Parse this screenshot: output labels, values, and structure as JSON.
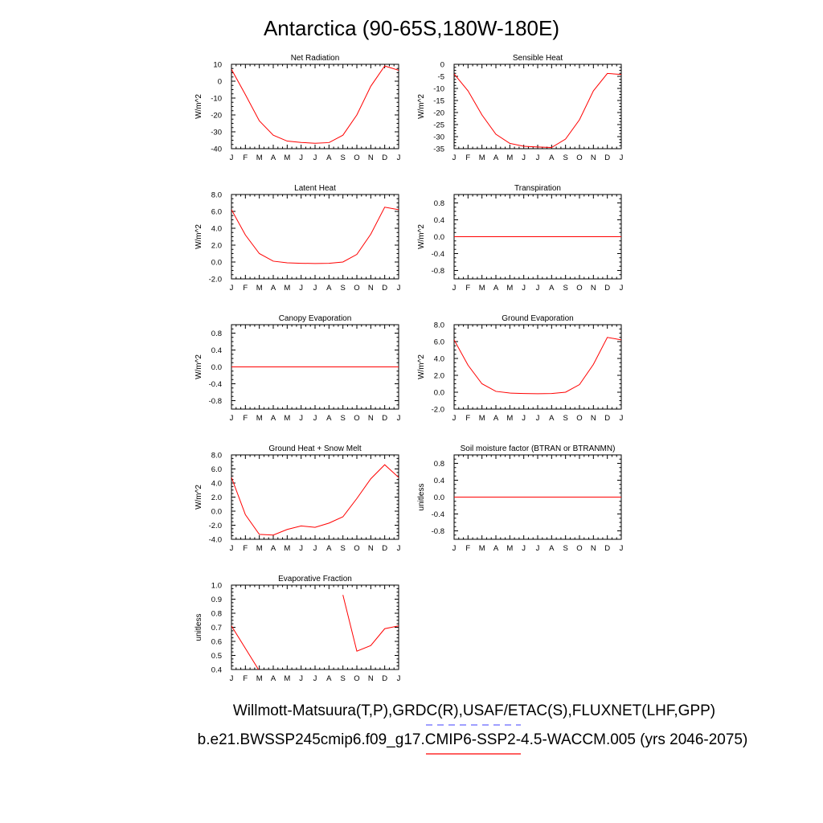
{
  "figure": {
    "title": "Antarctica (90-65S,180W-180E)",
    "legend": [
      {
        "text": "Willmott-Matsuura(T,P),GRDC(R),USAF/ETAC(S),FLUXNET(LHF,GPP)",
        "color": "#6666ff",
        "style": "dashed"
      },
      {
        "text": "b.e21.BWSSP245cmip6.f09_g17.CMIP6-SSP2-4.5-WACCM.005 (yrs 2046-2075)",
        "color": "#ff0000",
        "style": "solid"
      }
    ]
  },
  "chart_data": [
    {
      "type": "line",
      "title": "Net Radiation",
      "ylabel": "W/m^2",
      "x": [
        "J",
        "F",
        "M",
        "A",
        "M",
        "J",
        "J",
        "A",
        "S",
        "O",
        "N",
        "D",
        "J"
      ],
      "ylim": [
        -40,
        10
      ],
      "yticks": [
        10,
        0,
        -10,
        -20,
        -30,
        -40
      ],
      "yticklabels": [
        "10",
        "0",
        "-10",
        "-20",
        "-30",
        "-40"
      ],
      "series": [
        {
          "name": "model",
          "color": "#ff0000",
          "values": [
            7,
            -8,
            -23.5,
            -32,
            -35.5,
            -36.3,
            -36.8,
            -36.4,
            -32,
            -20,
            -3,
            9,
            6.5
          ]
        }
      ]
    },
    {
      "type": "line",
      "title": "Sensible Heat",
      "ylabel": "W/m^2",
      "x": [
        "J",
        "F",
        "M",
        "A",
        "M",
        "J",
        "J",
        "A",
        "S",
        "O",
        "N",
        "D",
        "J"
      ],
      "ylim": [
        -35,
        0
      ],
      "yticks": [
        0,
        -5,
        -10,
        -15,
        -20,
        -25,
        -30,
        -35
      ],
      "yticklabels": [
        "0",
        "-5",
        "-10",
        "-15",
        "-20",
        "-25",
        "-30",
        "-35"
      ],
      "series": [
        {
          "name": "model",
          "color": "#ff0000",
          "values": [
            -4,
            -11,
            -21,
            -29,
            -32.8,
            -34,
            -34.3,
            -34.5,
            -31,
            -23,
            -11,
            -3.8,
            -4.2
          ]
        }
      ]
    },
    {
      "type": "line",
      "title": "Latent Heat",
      "ylabel": "W/m^2",
      "x": [
        "J",
        "F",
        "M",
        "A",
        "M",
        "J",
        "J",
        "A",
        "S",
        "O",
        "N",
        "D",
        "J"
      ],
      "ylim": [
        -2,
        8
      ],
      "yticks": [
        8,
        6,
        4,
        2,
        0,
        -2
      ],
      "yticklabels": [
        "8.0",
        "6.0",
        "4.0",
        "2.0",
        "0.0",
        "-2.0"
      ],
      "series": [
        {
          "name": "model",
          "color": "#ff0000",
          "values": [
            6.2,
            3.2,
            1,
            0.1,
            -0.1,
            -0.15,
            -0.18,
            -0.15,
            0,
            0.9,
            3.3,
            6.5,
            6.2
          ]
        }
      ]
    },
    {
      "type": "line",
      "title": "Transpiration",
      "ylabel": "W/m^2",
      "x": [
        "J",
        "F",
        "M",
        "A",
        "M",
        "J",
        "J",
        "A",
        "S",
        "O",
        "N",
        "D",
        "J"
      ],
      "ylim": [
        -1,
        1
      ],
      "yticks": [
        0.8,
        0.4,
        0,
        -0.4,
        -0.8
      ],
      "yticklabels": [
        "0.8",
        "0.4",
        "0.0",
        "-0.4",
        "-0.8"
      ],
      "series": [
        {
          "name": "model",
          "color": "#ff0000",
          "values": [
            0,
            0,
            0,
            0,
            0,
            0,
            0,
            0,
            0,
            0,
            0,
            0,
            0
          ]
        }
      ]
    },
    {
      "type": "line",
      "title": "Canopy Evaporation",
      "ylabel": "W/m^2",
      "x": [
        "J",
        "F",
        "M",
        "A",
        "M",
        "J",
        "J",
        "A",
        "S",
        "O",
        "N",
        "D",
        "J"
      ],
      "ylim": [
        -1,
        1
      ],
      "yticks": [
        0.8,
        0.4,
        0,
        -0.4,
        -0.8
      ],
      "yticklabels": [
        "0.8",
        "0.4",
        "0.0",
        "-0.4",
        "-0.8"
      ],
      "series": [
        {
          "name": "model",
          "color": "#ff0000",
          "values": [
            0,
            0,
            0,
            0,
            0,
            0,
            0,
            0,
            0,
            0,
            0,
            0,
            0
          ]
        }
      ]
    },
    {
      "type": "line",
      "title": "Ground Evaporation",
      "ylabel": "W/m^2",
      "x": [
        "J",
        "F",
        "M",
        "A",
        "M",
        "J",
        "J",
        "A",
        "S",
        "O",
        "N",
        "D",
        "J"
      ],
      "ylim": [
        -2,
        8
      ],
      "yticks": [
        8,
        6,
        4,
        2,
        0,
        -2
      ],
      "yticklabels": [
        "8.0",
        "6.0",
        "4.0",
        "2.0",
        "0.0",
        "-2.0"
      ],
      "series": [
        {
          "name": "model",
          "color": "#ff0000",
          "values": [
            6.2,
            3.2,
            1,
            0.1,
            -0.1,
            -0.15,
            -0.18,
            -0.15,
            0,
            0.9,
            3.3,
            6.5,
            6.2
          ]
        }
      ]
    },
    {
      "type": "line",
      "title": "Ground Heat + Snow Melt",
      "ylabel": "W/m^2",
      "x": [
        "J",
        "F",
        "M",
        "A",
        "M",
        "J",
        "J",
        "A",
        "S",
        "O",
        "N",
        "D",
        "J"
      ],
      "ylim": [
        -4,
        8
      ],
      "yticks": [
        8,
        6,
        4,
        2,
        0,
        -2,
        -4
      ],
      "yticklabels": [
        "8.0",
        "6.0",
        "4.0",
        "2.0",
        "0.0",
        "-2.0",
        "-4.0"
      ],
      "series": [
        {
          "name": "model",
          "color": "#ff0000",
          "values": [
            4.8,
            -0.5,
            -3.3,
            -3.4,
            -2.6,
            -2.1,
            -2.3,
            -1.7,
            -0.8,
            1.8,
            4.6,
            6.6,
            4.8
          ]
        }
      ]
    },
    {
      "type": "line",
      "title": "Soil moisture factor (BTRAN or BTRANMN)",
      "ylabel": "unitless",
      "x": [
        "J",
        "F",
        "M",
        "A",
        "M",
        "J",
        "J",
        "A",
        "S",
        "O",
        "N",
        "D",
        "J"
      ],
      "ylim": [
        -1,
        1
      ],
      "yticks": [
        0.8,
        0.4,
        0,
        -0.4,
        -0.8
      ],
      "yticklabels": [
        "0.8",
        "0.4",
        "0.0",
        "-0.4",
        "-0.8"
      ],
      "series": [
        {
          "name": "model",
          "color": "#ff0000",
          "values": [
            0,
            0,
            0,
            0,
            0,
            0,
            0,
            0,
            0,
            0,
            0,
            0,
            0
          ]
        }
      ]
    },
    {
      "type": "line",
      "title": "Evaporative Fraction",
      "ylabel": "unitless",
      "x": [
        "J",
        "F",
        "M",
        "A",
        "M",
        "J",
        "J",
        "A",
        "S",
        "O",
        "N",
        "D",
        "J"
      ],
      "ylim": [
        0.4,
        1.0
      ],
      "yticks": [
        1.0,
        0.9,
        0.8,
        0.7,
        0.6,
        0.5,
        0.4
      ],
      "yticklabels": [
        "1.0",
        "0.9",
        "0.8",
        "0.7",
        "0.6",
        "0.5",
        "0.4"
      ],
      "series": [
        {
          "name": "model",
          "color": "#ff0000",
          "values": [
            0.71,
            0.55,
            0.39,
            null,
            null,
            null,
            null,
            null,
            0.93,
            0.53,
            0.57,
            0.69,
            0.71
          ]
        }
      ]
    }
  ]
}
